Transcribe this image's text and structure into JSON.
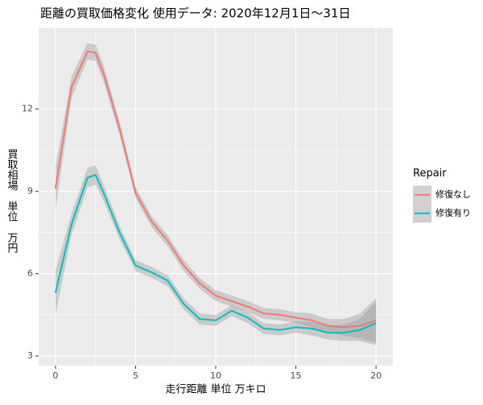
{
  "chart_data": {
    "type": "line",
    "title": "距離の買取価格変化 使用データ: 2020年12月1日～31日",
    "x_label": "走行距離 単位 万キロ",
    "y_label": "買取相場　単位　万円",
    "legend_title": "Repair",
    "x": [
      0,
      1,
      2,
      2.5,
      3,
      4,
      5,
      6,
      7,
      8,
      9,
      10,
      11,
      12,
      13,
      14,
      15,
      16,
      17,
      18,
      19,
      20
    ],
    "series": [
      {
        "name": "修復なし",
        "color": "#F8766D",
        "values": [
          9.1,
          12.8,
          14.1,
          14.05,
          13.3,
          11.3,
          8.95,
          7.9,
          7.2,
          6.3,
          5.65,
          5.2,
          5.0,
          4.8,
          4.55,
          4.5,
          4.4,
          4.3,
          4.1,
          4.05,
          4.1,
          4.3
        ],
        "lower": [
          8.3,
          12.4,
          13.8,
          13.75,
          13.0,
          11.05,
          8.75,
          7.7,
          7.0,
          6.1,
          5.45,
          5.0,
          4.8,
          4.6,
          4.35,
          4.3,
          4.2,
          4.05,
          3.85,
          3.75,
          3.65,
          3.5
        ],
        "upper": [
          9.9,
          13.2,
          14.4,
          14.35,
          13.6,
          11.55,
          9.15,
          8.1,
          7.4,
          6.5,
          5.85,
          5.4,
          5.2,
          5.0,
          4.75,
          4.7,
          4.6,
          4.55,
          4.35,
          4.35,
          4.55,
          5.1
        ]
      },
      {
        "name": "修復有り",
        "color": "#00BFC4",
        "values": [
          5.3,
          7.8,
          9.5,
          9.6,
          8.95,
          7.5,
          6.3,
          6.05,
          5.75,
          4.9,
          4.35,
          4.3,
          4.65,
          4.4,
          4.0,
          3.95,
          4.05,
          4.0,
          3.85,
          3.85,
          3.95,
          4.2
        ],
        "lower": [
          4.5,
          7.4,
          9.15,
          9.25,
          8.65,
          7.25,
          6.1,
          5.85,
          5.55,
          4.7,
          4.15,
          4.1,
          4.45,
          4.2,
          3.8,
          3.75,
          3.85,
          3.75,
          3.6,
          3.55,
          3.55,
          3.4
        ],
        "upper": [
          6.1,
          8.2,
          9.85,
          9.95,
          9.25,
          7.75,
          6.5,
          6.25,
          5.95,
          5.1,
          4.55,
          4.5,
          4.85,
          4.6,
          4.2,
          4.15,
          4.25,
          4.25,
          4.1,
          4.15,
          4.35,
          5.0
        ]
      }
    ],
    "xlim": [
      -1.05,
      21.05
    ],
    "ylim": [
      2.65,
      14.95
    ],
    "xticks": [
      0,
      5,
      10,
      15,
      20
    ],
    "yticks": [
      3,
      6,
      9,
      12
    ],
    "grid": true,
    "legend_position": "right"
  }
}
